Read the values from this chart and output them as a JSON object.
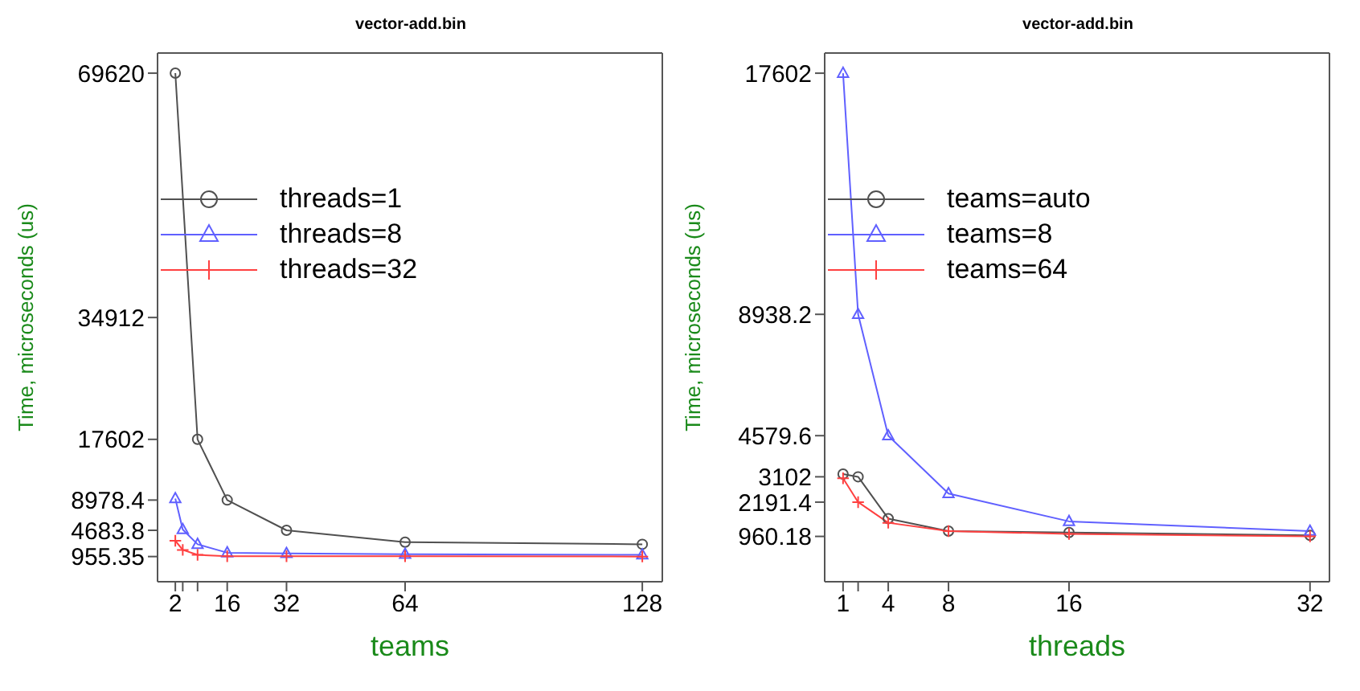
{
  "chart_data": [
    {
      "type": "line",
      "title": "vector-add.bin",
      "xlabel": "teams",
      "ylabel": "Time, microseconds (us)",
      "legend": "top left",
      "xlim": [
        -2.8,
        133.4
      ],
      "xticks": [
        2,
        {
          "value": 4,
          "label": null
        },
        {
          "value": 8,
          "label": null
        },
        16,
        32,
        64,
        128
      ],
      "ylim": [
        -2621,
        72480
      ],
      "yticks": [
        955.35,
        4683.8,
        8978.4,
        17602,
        34912,
        69620
      ],
      "series": [
        {
          "name": "threads=1",
          "color": "#505050",
          "marker": "circle",
          "x": [
            2,
            8,
            16,
            32,
            64,
            128
          ],
          "values": [
            69620,
            17602,
            8978.4,
            4683.8,
            3000,
            2700
          ]
        },
        {
          "name": "threads=8",
          "color": "#6060ff",
          "marker": "triangle",
          "x": [
            2,
            4,
            8,
            16,
            32,
            64,
            128
          ],
          "values": [
            9200,
            4800,
            2700,
            1500,
            1400,
            1300,
            1200
          ]
        },
        {
          "name": "threads=32",
          "color": "#ff4040",
          "marker": "cross",
          "x": [
            2,
            4,
            8,
            16,
            32,
            64,
            128
          ],
          "values": [
            3200,
            1900,
            1200,
            1000,
            1000,
            1000,
            955.35
          ]
        }
      ]
    },
    {
      "type": "line",
      "title": "vector-add.bin",
      "xlabel": "threads",
      "ylabel": "Time, microseconds (us)",
      "legend": "top left",
      "xlim": [
        -0.22,
        33.29
      ],
      "xticks": [
        1,
        {
          "value": 2,
          "label": null
        },
        4,
        8,
        16,
        32
      ],
      "ylim": [
        -668,
        18326
      ],
      "yticks": [
        960.18,
        2191.4,
        3102,
        4579.6,
        8938.2,
        17602
      ],
      "series": [
        {
          "name": "teams=auto",
          "color": "#505050",
          "marker": "circle",
          "x": [
            1,
            2,
            4,
            8,
            16,
            32
          ],
          "values": [
            3200,
            3102,
            1600,
            1150,
            1100,
            1000
          ]
        },
        {
          "name": "teams=8",
          "color": "#6060ff",
          "marker": "triangle",
          "x": [
            1,
            2,
            4,
            8,
            16,
            32
          ],
          "values": [
            17602,
            8938.2,
            4579.6,
            2500,
            1500,
            1150
          ]
        },
        {
          "name": "teams=64",
          "color": "#ff4040",
          "marker": "cross",
          "x": [
            1,
            2,
            4,
            8,
            16,
            32
          ],
          "values": [
            3050,
            2191.4,
            1450,
            1150,
            1050,
            960.18
          ]
        }
      ]
    }
  ]
}
